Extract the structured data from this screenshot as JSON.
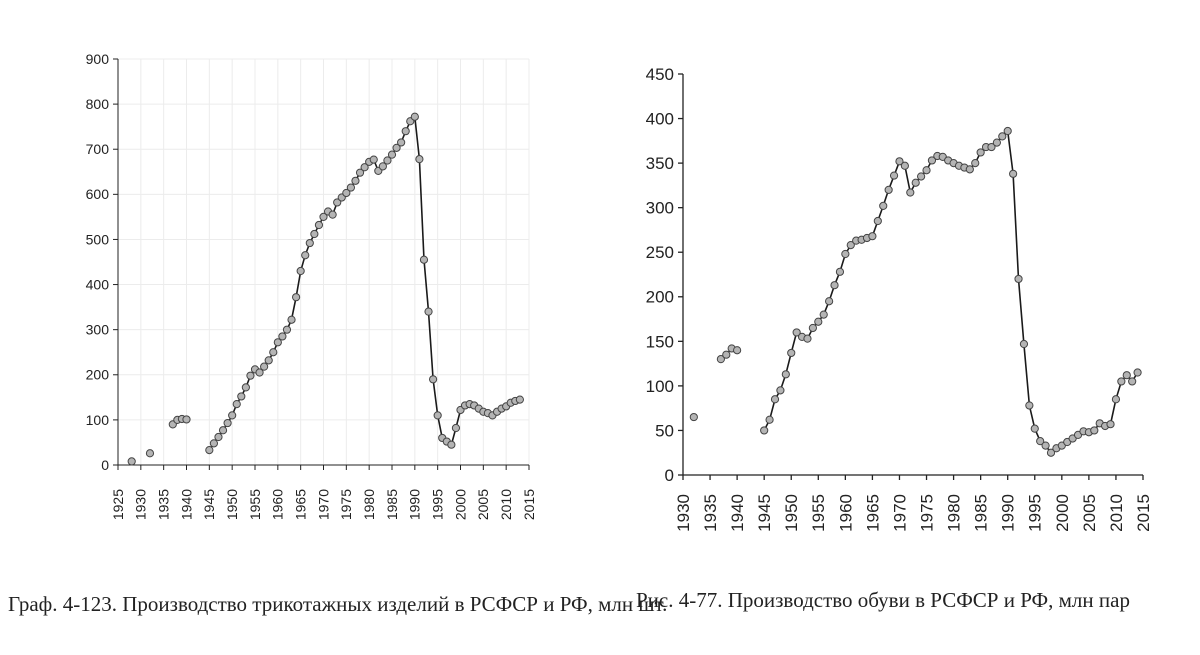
{
  "chart_data": [
    {
      "type": "line",
      "caption": "Граф. 4-123. Производство трикотажных изделий в РСФСР и РФ, млн шт.",
      "xlim": [
        1925,
        2015
      ],
      "ylim": [
        0,
        900
      ],
      "x_ticks": [
        1925,
        1930,
        1935,
        1940,
        1945,
        1950,
        1955,
        1960,
        1965,
        1970,
        1975,
        1980,
        1985,
        1990,
        1995,
        2000,
        2005,
        2010,
        2015
      ],
      "y_ticks": [
        0,
        100,
        200,
        300,
        400,
        500,
        600,
        700,
        800,
        900
      ],
      "grid": true,
      "series": [
        {
          "name": "Трикотажные изделия",
          "segments": [
            [
              [
                1928,
                8
              ]
            ],
            [
              [
                1932,
                26
              ]
            ],
            [
              [
                1937,
                90
              ],
              [
                1938,
                100
              ],
              [
                1939,
                102
              ],
              [
                1940,
                101
              ]
            ],
            [
              [
                1945,
                33
              ],
              [
                1946,
                48
              ],
              [
                1947,
                62
              ],
              [
                1948,
                77
              ],
              [
                1949,
                93
              ],
              [
                1950,
                110
              ],
              [
                1951,
                135
              ],
              [
                1952,
                152
              ],
              [
                1953,
                172
              ],
              [
                1954,
                198
              ],
              [
                1955,
                212
              ],
              [
                1956,
                205
              ],
              [
                1957,
                218
              ],
              [
                1958,
                232
              ],
              [
                1959,
                250
              ],
              [
                1960,
                272
              ],
              [
                1961,
                285
              ],
              [
                1962,
                300
              ],
              [
                1963,
                322
              ],
              [
                1964,
                372
              ],
              [
                1965,
                430
              ],
              [
                1966,
                465
              ],
              [
                1967,
                492
              ],
              [
                1968,
                512
              ],
              [
                1969,
                532
              ],
              [
                1970,
                550
              ],
              [
                1971,
                562
              ],
              [
                1972,
                555
              ],
              [
                1973,
                582
              ],
              [
                1974,
                593
              ],
              [
                1975,
                603
              ],
              [
                1976,
                615
              ],
              [
                1977,
                630
              ],
              [
                1978,
                648
              ],
              [
                1979,
                660
              ],
              [
                1980,
                672
              ],
              [
                1981,
                677
              ],
              [
                1982,
                652
              ],
              [
                1983,
                662
              ],
              [
                1984,
                675
              ],
              [
                1985,
                688
              ],
              [
                1986,
                703
              ],
              [
                1987,
                715
              ],
              [
                1988,
                740
              ],
              [
                1989,
                762
              ],
              [
                1990,
                772
              ],
              [
                1991,
                678
              ],
              [
                1992,
                455
              ],
              [
                1993,
                340
              ],
              [
                1994,
                190
              ],
              [
                1995,
                110
              ],
              [
                1996,
                60
              ],
              [
                1997,
                52
              ],
              [
                1998,
                45
              ],
              [
                1999,
                82
              ],
              [
                2000,
                122
              ],
              [
                2001,
                132
              ],
              [
                2002,
                135
              ],
              [
                2003,
                132
              ],
              [
                2004,
                125
              ],
              [
                2005,
                118
              ],
              [
                2006,
                115
              ],
              [
                2007,
                110
              ],
              [
                2008,
                118
              ],
              [
                2009,
                125
              ],
              [
                2010,
                130
              ],
              [
                2011,
                138
              ],
              [
                2012,
                142
              ],
              [
                2013,
                145
              ]
            ]
          ]
        }
      ]
    },
    {
      "type": "line",
      "caption": "Рис. 4-77. Производство обуви в РСФСР и РФ, млн пар",
      "xlim": [
        1930,
        2015
      ],
      "ylim": [
        0,
        450
      ],
      "x_ticks": [
        1930,
        1935,
        1940,
        1945,
        1950,
        1955,
        1960,
        1965,
        1970,
        1975,
        1980,
        1985,
        1990,
        1995,
        2000,
        2005,
        2010,
        2015
      ],
      "y_ticks": [
        0,
        50,
        100,
        150,
        200,
        250,
        300,
        350,
        400,
        450
      ],
      "grid": false,
      "series": [
        {
          "name": "Обувь",
          "segments": [
            [
              [
                1932,
                65
              ]
            ],
            [
              [
                1937,
                130
              ],
              [
                1938,
                135
              ],
              [
                1939,
                142
              ],
              [
                1940,
                140
              ]
            ],
            [
              [
                1945,
                50
              ],
              [
                1946,
                62
              ],
              [
                1947,
                85
              ],
              [
                1948,
                95
              ],
              [
                1949,
                113
              ],
              [
                1950,
                137
              ],
              [
                1951,
                160
              ],
              [
                1952,
                155
              ],
              [
                1953,
                153
              ],
              [
                1954,
                165
              ],
              [
                1955,
                172
              ],
              [
                1956,
                180
              ],
              [
                1957,
                195
              ],
              [
                1958,
                213
              ],
              [
                1959,
                228
              ],
              [
                1960,
                248
              ],
              [
                1961,
                258
              ],
              [
                1962,
                263
              ],
              [
                1963,
                264
              ],
              [
                1964,
                266
              ],
              [
                1965,
                268
              ],
              [
                1966,
                285
              ],
              [
                1967,
                302
              ],
              [
                1968,
                320
              ],
              [
                1969,
                336
              ],
              [
                1970,
                352
              ],
              [
                1971,
                347
              ],
              [
                1972,
                317
              ],
              [
                1973,
                328
              ],
              [
                1974,
                335
              ],
              [
                1975,
                342
              ],
              [
                1976,
                353
              ],
              [
                1977,
                358
              ],
              [
                1978,
                357
              ],
              [
                1979,
                353
              ],
              [
                1980,
                350
              ],
              [
                1981,
                347
              ],
              [
                1982,
                345
              ],
              [
                1983,
                343
              ],
              [
                1984,
                350
              ],
              [
                1985,
                362
              ],
              [
                1986,
                368
              ],
              [
                1987,
                368
              ],
              [
                1988,
                373
              ],
              [
                1989,
                380
              ],
              [
                1990,
                386
              ],
              [
                1991,
                338
              ],
              [
                1992,
                220
              ],
              [
                1993,
                147
              ],
              [
                1994,
                78
              ],
              [
                1995,
                52
              ],
              [
                1996,
                38
              ],
              [
                1997,
                33
              ],
              [
                1998,
                25
              ],
              [
                1999,
                30
              ],
              [
                2000,
                33
              ],
              [
                2001,
                37
              ],
              [
                2002,
                41
              ],
              [
                2003,
                45
              ],
              [
                2004,
                49
              ],
              [
                2005,
                48
              ],
              [
                2006,
                50
              ],
              [
                2007,
                58
              ],
              [
                2008,
                55
              ],
              [
                2009,
                57
              ],
              [
                2010,
                85
              ],
              [
                2011,
                105
              ],
              [
                2012,
                112
              ],
              [
                2013,
                105
              ],
              [
                2014,
                115
              ]
            ]
          ]
        }
      ]
    }
  ]
}
